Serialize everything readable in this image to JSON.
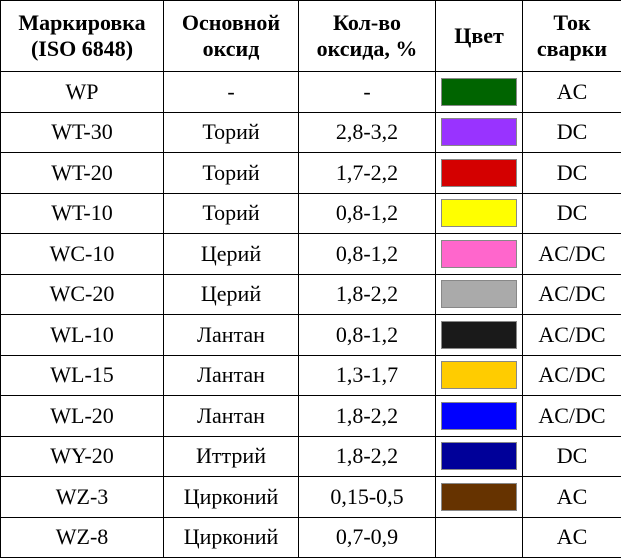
{
  "headers": {
    "marking": [
      "Маркировка",
      "(ISO 6848)"
    ],
    "oxide": [
      "Основной",
      "оксид"
    ],
    "amount": [
      "Кол-во",
      "оксида, %"
    ],
    "color": [
      "Цвет"
    ],
    "current": [
      "Ток",
      "сварки"
    ]
  },
  "rows": [
    {
      "marking": "WP",
      "oxide": "-",
      "amount": "-",
      "color": "#006400",
      "current": "AC"
    },
    {
      "marking": "WT-30",
      "oxide": "Торий",
      "amount": "2,8-3,2",
      "color": "#9933ff",
      "current": "DC"
    },
    {
      "marking": "WT-20",
      "oxide": "Торий",
      "amount": "1,7-2,2",
      "color": "#d40000",
      "current": "DC"
    },
    {
      "marking": "WT-10",
      "oxide": "Торий",
      "amount": "0,8-1,2",
      "color": "#ffff00",
      "current": "DC"
    },
    {
      "marking": "WC-10",
      "oxide": "Церий",
      "amount": "0,8-1,2",
      "color": "#ff66cc",
      "current": "AC/DC"
    },
    {
      "marking": "WC-20",
      "oxide": "Церий",
      "amount": "1,8-2,2",
      "color": "#aaaaaa",
      "current": "AC/DC"
    },
    {
      "marking": "WL-10",
      "oxide": "Лантан",
      "amount": "0,8-1,2",
      "color": "#1a1a1a",
      "current": "AC/DC"
    },
    {
      "marking": "WL-15",
      "oxide": "Лантан",
      "amount": "1,3-1,7",
      "color": "#ffcc00",
      "current": "AC/DC"
    },
    {
      "marking": "WL-20",
      "oxide": "Лантан",
      "amount": "1,8-2,2",
      "color": "#0000ff",
      "current": "AC/DC"
    },
    {
      "marking": "WY-20",
      "oxide": "Иттрий",
      "amount": "1,8-2,2",
      "color": "#000099",
      "current": "DC"
    },
    {
      "marking": "WZ-3",
      "oxide": "Цирконий",
      "amount": "0,15-0,5",
      "color": "#663300",
      "current": "AC"
    },
    {
      "marking": "WZ-8",
      "oxide": "Цирконий",
      "amount": "0,7-0,9",
      "color": "",
      "current": "AC"
    }
  ]
}
